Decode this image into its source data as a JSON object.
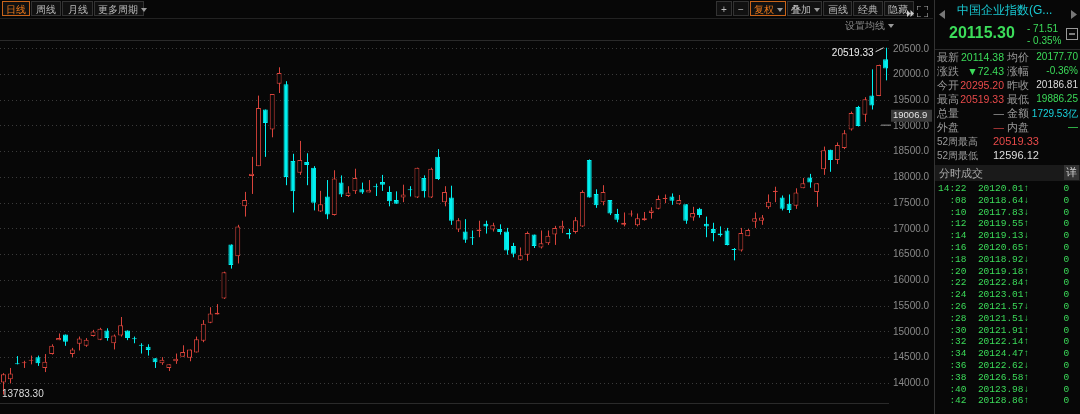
{
  "chart_data": [
    {
      "type": "candlestick",
      "subtitle": "设置均线",
      "annotations": [
        "日线",
        "周线",
        "月线",
        "更多周期",
        "+",
        "−",
        "复权",
        "叠加",
        "画线",
        "经典",
        "隐藏",
        "20519.33",
        "13783.30"
      ],
      "ref_lines": [
        {
          "axis": "y",
          "value": 19006.9,
          "label": "19006.9"
        }
      ],
      "categories": [
        null,
        null,
        null,
        null,
        null,
        null,
        null,
        null,
        null,
        null,
        null,
        null,
        null,
        null,
        null,
        null,
        null,
        null,
        null,
        null,
        null,
        null,
        null,
        null,
        null,
        null,
        null,
        null,
        null,
        null,
        null,
        null,
        null,
        null,
        null,
        null,
        null,
        null,
        null,
        null,
        null,
        null,
        null,
        null,
        null,
        null,
        null,
        null,
        null,
        null,
        null,
        null,
        null,
        null,
        null,
        null,
        null,
        null,
        null,
        null,
        null,
        null,
        null,
        null,
        null,
        null,
        null,
        null,
        null,
        null,
        null,
        null,
        null,
        null,
        null,
        null,
        null,
        null,
        null,
        null,
        null,
        null,
        null,
        null,
        null,
        null,
        null,
        null,
        null,
        null,
        null,
        null,
        null,
        null,
        null,
        null,
        null,
        null,
        null,
        null,
        null,
        null,
        null,
        null,
        null,
        null,
        null,
        null,
        null,
        null,
        null,
        null,
        null,
        null,
        null,
        null,
        null,
        null,
        null,
        null,
        null,
        null,
        null,
        null,
        null,
        null,
        null,
        null,
        null
      ],
      "ohlc": [
        [
          14020,
          14200,
          13783.3,
          14180
        ],
        [
          14080,
          14300,
          14000,
          14190
        ],
        [
          14380,
          14530,
          14370,
          14370
        ],
        [
          14390,
          14440,
          14300,
          14410
        ],
        [
          14440,
          14540,
          14370,
          14460
        ],
        [
          14510,
          14540,
          14340,
          14390
        ],
        [
          14300,
          14570,
          14220,
          14420
        ],
        [
          14570,
          14760,
          14560,
          14730
        ],
        [
          14840,
          14970,
          14840,
          14880
        ],
        [
          14950,
          14950,
          14730,
          14810
        ],
        [
          14570,
          14690,
          14510,
          14660
        ],
        [
          14770,
          14910,
          14640,
          14870
        ],
        [
          14730,
          14880,
          14710,
          14850
        ],
        [
          14920,
          15040,
          14910,
          15010
        ],
        [
          14850,
          15080,
          14840,
          15060
        ],
        [
          15030,
          15070,
          14830,
          14880
        ],
        [
          14780,
          14950,
          14660,
          14930
        ],
        [
          14930,
          15290,
          14910,
          15130
        ],
        [
          15030,
          15030,
          14840,
          14880
        ],
        [
          14870,
          14910,
          14780,
          14860
        ],
        [
          14740,
          14780,
          14580,
          14730
        ],
        [
          14710,
          14760,
          14540,
          14650
        ],
        [
          14490,
          14490,
          14300,
          14410
        ],
        [
          14390,
          14510,
          14360,
          14460
        ],
        [
          14300,
          14370,
          14240,
          14370
        ],
        [
          14430,
          14580,
          14380,
          14480
        ],
        [
          14520,
          14740,
          14520,
          14610
        ],
        [
          14500,
          14660,
          14430,
          14660
        ],
        [
          14600,
          14910,
          14600,
          14860
        ],
        [
          14830,
          15230,
          14800,
          15160
        ],
        [
          15180,
          15480,
          15170,
          15360
        ],
        [
          15340,
          15540,
          15340,
          15370
        ],
        [
          15650,
          16170,
          15640,
          16160
        ],
        [
          16700,
          16700,
          16230,
          16300
        ],
        [
          16470,
          17080,
          16330,
          17050
        ],
        [
          17440,
          17720,
          17240,
          17560
        ],
        [
          18030,
          18400,
          17680,
          18070
        ],
        [
          18220,
          19590,
          18220,
          19350
        ],
        [
          19320,
          19320,
          18400,
          19060
        ],
        [
          18930,
          19620,
          18780,
          19620
        ],
        [
          19820,
          20140,
          19640,
          20030
        ],
        [
          19810,
          19870,
          17850,
          18010
        ],
        [
          18320,
          18460,
          17320,
          17730
        ],
        [
          18090,
          18710,
          18050,
          18340
        ],
        [
          18300,
          18470,
          17850,
          18240
        ],
        [
          18190,
          18220,
          17360,
          17510
        ],
        [
          17340,
          17740,
          17330,
          17480
        ],
        [
          17630,
          17950,
          17190,
          17280
        ],
        [
          17270,
          18140,
          17260,
          17980
        ],
        [
          17900,
          18040,
          17620,
          17670
        ],
        [
          17640,
          17830,
          17620,
          17710
        ],
        [
          17730,
          18170,
          17680,
          17990
        ],
        [
          17770,
          17900,
          17680,
          17710
        ],
        [
          17710,
          17950,
          17710,
          17760
        ],
        [
          17820,
          17880,
          17640,
          17810
        ],
        [
          17910,
          18050,
          17740,
          17860
        ],
        [
          17720,
          17830,
          17440,
          17540
        ],
        [
          17560,
          17730,
          17490,
          17490
        ],
        [
          17610,
          17860,
          17520,
          17670
        ],
        [
          17760,
          17830,
          17630,
          17750
        ],
        [
          17610,
          18190,
          17600,
          18190
        ],
        [
          17990,
          18040,
          17610,
          17730
        ],
        [
          17610,
          18190,
          17600,
          18170
        ],
        [
          18400,
          18550,
          17950,
          17970
        ],
        [
          17520,
          17830,
          17440,
          17720
        ],
        [
          17610,
          17840,
          17080,
          17160
        ],
        [
          16990,
          17210,
          16940,
          17170
        ],
        [
          16950,
          17190,
          16730,
          16790
        ],
        [
          16840,
          16970,
          16690,
          16820
        ],
        [
          16960,
          17160,
          16840,
          16990
        ],
        [
          17100,
          17160,
          16910,
          17050
        ],
        [
          16990,
          17120,
          16950,
          17070
        ],
        [
          17000,
          17090,
          16890,
          16940
        ],
        [
          16950,
          17020,
          16500,
          16580
        ],
        [
          16670,
          16730,
          16450,
          16520
        ],
        [
          16400,
          16640,
          16390,
          16490
        ],
        [
          16500,
          16950,
          16380,
          16920
        ],
        [
          16890,
          16890,
          16630,
          16670
        ],
        [
          16640,
          16970,
          16620,
          16720
        ],
        [
          16720,
          16970,
          16690,
          16870
        ],
        [
          16890,
          17060,
          16690,
          17020
        ],
        [
          17010,
          17160,
          16920,
          17060
        ],
        [
          16920,
          17000,
          16810,
          16890
        ],
        [
          16940,
          17230,
          16910,
          17170
        ],
        [
          17050,
          17750,
          17040,
          17720
        ],
        [
          18340,
          18350,
          17610,
          17610
        ],
        [
          17680,
          17770,
          17410,
          17460
        ],
        [
          17520,
          17850,
          17460,
          17720
        ],
        [
          17560,
          17560,
          17270,
          17300
        ],
        [
          17290,
          17390,
          17130,
          17180
        ],
        [
          17080,
          17320,
          17050,
          17120
        ],
        [
          17280,
          17360,
          17240,
          17300
        ],
        [
          17070,
          17300,
          17050,
          17210
        ],
        [
          17170,
          17330,
          17160,
          17210
        ],
        [
          17310,
          17420,
          17200,
          17360
        ],
        [
          17390,
          17650,
          17380,
          17580
        ],
        [
          17580,
          17670,
          17500,
          17600
        ],
        [
          17630,
          17690,
          17470,
          17550
        ],
        [
          17480,
          17660,
          17470,
          17560
        ],
        [
          17480,
          17480,
          17100,
          17160
        ],
        [
          17220,
          17430,
          17160,
          17310
        ],
        [
          17390,
          17410,
          17220,
          17270
        ],
        [
          17100,
          17240,
          16840,
          17050
        ],
        [
          17000,
          17120,
          16760,
          16920
        ],
        [
          16910,
          17050,
          16850,
          16880
        ],
        [
          16970,
          17020,
          16680,
          16690
        ],
        [
          16610,
          16630,
          16390,
          16590
        ],
        [
          16580,
          17020,
          16560,
          16920
        ],
        [
          16860,
          17000,
          16860,
          16980
        ],
        [
          17140,
          17320,
          17020,
          17210
        ],
        [
          17160,
          17270,
          17080,
          17220
        ],
        [
          17420,
          17670,
          17390,
          17530
        ],
        [
          17720,
          17820,
          17520,
          17740
        ],
        [
          17610,
          17650,
          17360,
          17390
        ],
        [
          17490,
          17670,
          17310,
          17370
        ],
        [
          17450,
          17790,
          17390,
          17710
        ],
        [
          17790,
          17990,
          17790,
          17890
        ],
        [
          18000,
          18070,
          17800,
          17900
        ],
        [
          17720,
          17890,
          17430,
          17890
        ],
        [
          18160,
          18600,
          18050,
          18530
        ],
        [
          18540,
          18540,
          18110,
          18340
        ],
        [
          18340,
          18680,
          18260,
          18630
        ],
        [
          18570,
          18920,
          18550,
          18860
        ],
        [
          18930,
          19280,
          18910,
          19250
        ],
        [
          19370,
          19390,
          18990,
          19000
        ],
        [
          19220,
          19560,
          19080,
          19520
        ],
        [
          19590,
          20100,
          19320,
          19400
        ],
        [
          19580,
          20190,
          19580,
          20186.81
        ],
        [
          20295.2,
          20519.33,
          19886.25,
          20114.38
        ]
      ],
      "ylim": [
        13600,
        20670
      ],
      "yticks": [
        {
          "value": 14000,
          "label": "14000.0"
        },
        {
          "value": 14500,
          "label": "14500.0"
        },
        {
          "value": 15000,
          "label": "15000.0"
        },
        {
          "value": 15500,
          "label": "15500.0"
        },
        {
          "value": 16000,
          "label": "16000.0"
        },
        {
          "value": 16500,
          "label": "16500.0"
        },
        {
          "value": 17000,
          "label": "17000.0"
        },
        {
          "value": 17500,
          "label": "17500.0"
        },
        {
          "value": 18000,
          "label": "18000.0"
        },
        {
          "value": 18500,
          "label": "18500.0"
        },
        {
          "value": 19000,
          "label": "19000.0"
        },
        {
          "value": 19500,
          "label": "19500.0"
        },
        {
          "value": 20000,
          "label": "20000.0"
        },
        {
          "value": 20500,
          "label": "20500.0"
        }
      ],
      "grid": "y",
      "legend": false,
      "tick_labels": "y"
    },
    {
      "type": "other",
      "title": "中国企业指数(G...",
      "annotations": [
        "20115.30",
        "- 71.51",
        "- 0.35%",
        "最新",
        "20114.38",
        "均价",
        "20177.70",
        "涨跌",
        "▼72.43",
        "涨幅",
        "-0.36%",
        "今开",
        "20295.20",
        "昨收",
        "20186.81",
        "最高",
        "20519.33",
        "最低",
        "19886.25",
        "总量",
        "—",
        "金额",
        "1729.53亿",
        "外盘",
        "—",
        "内盘",
        "—",
        "52周最高",
        "20519.33",
        "52周最低",
        "12596.12"
      ]
    },
    {
      "type": "other",
      "title": "分时成交",
      "subtitle": "详",
      "annotations": [
        "14:22",
        "20120.01↑",
        "0",
        ":08",
        "20118.64↓",
        "0",
        ":10",
        "20117.83↓",
        "0",
        ":12",
        "20119.55↑",
        "0",
        ":14",
        "20119.13↓",
        "0",
        ":16",
        "20120.65↑",
        "0",
        ":18",
        "20118.92↓",
        "0",
        ":20",
        "20119.18↑",
        "0",
        ":22",
        "20122.84↑",
        "0",
        ":24",
        "20123.01↑",
        "0",
        ":26",
        "20121.57↓",
        "0",
        ":28",
        "20121.51↓",
        "0",
        ":30",
        "20121.91↑",
        "0",
        ":32",
        "20122.14↑",
        "0",
        ":34",
        "20124.47↑",
        "0",
        ":36",
        "20122.62↓",
        "0",
        ":38",
        "20126.58↑",
        "0",
        ":40",
        "20123.98↓",
        "0",
        ":42",
        "20128.86↑",
        "0"
      ]
    }
  ]
}
